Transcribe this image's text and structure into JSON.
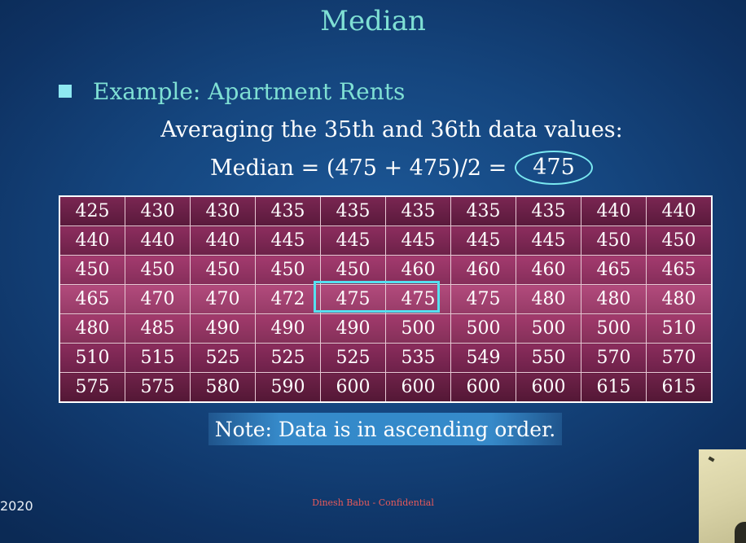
{
  "slide": {
    "title": "Median",
    "bullet": "Example:  Apartment Rents",
    "explanation_line": "Averaging the 35th and 36th data values:",
    "median_formula": "Median = (475 + 475)/2 = ",
    "median_result": "475",
    "note": "Note: Data is in ascending order.",
    "footer": "Dinesh Babu - Confidential",
    "year_fragment": "2020"
  },
  "table": {
    "rows": [
      [
        "425",
        "430",
        "430",
        "435",
        "435",
        "435",
        "435",
        "435",
        "440",
        "440"
      ],
      [
        "440",
        "440",
        "440",
        "445",
        "445",
        "445",
        "445",
        "445",
        "450",
        "450"
      ],
      [
        "450",
        "450",
        "450",
        "450",
        "450",
        "460",
        "460",
        "460",
        "465",
        "465"
      ],
      [
        "465",
        "470",
        "470",
        "472",
        "475",
        "475",
        "475",
        "480",
        "480",
        "480"
      ],
      [
        "480",
        "485",
        "490",
        "490",
        "490",
        "500",
        "500",
        "500",
        "500",
        "510"
      ],
      [
        "510",
        "515",
        "525",
        "525",
        "525",
        "535",
        "549",
        "550",
        "570",
        "570"
      ],
      [
        "575",
        "575",
        "580",
        "590",
        "600",
        "600",
        "600",
        "600",
        "615",
        "615"
      ]
    ]
  },
  "colors": {
    "title": "#7fe0d4",
    "highlight": "#55e0f0",
    "footer": "#e85a5a"
  },
  "icons": {
    "bullet": "square-bullet-icon"
  }
}
